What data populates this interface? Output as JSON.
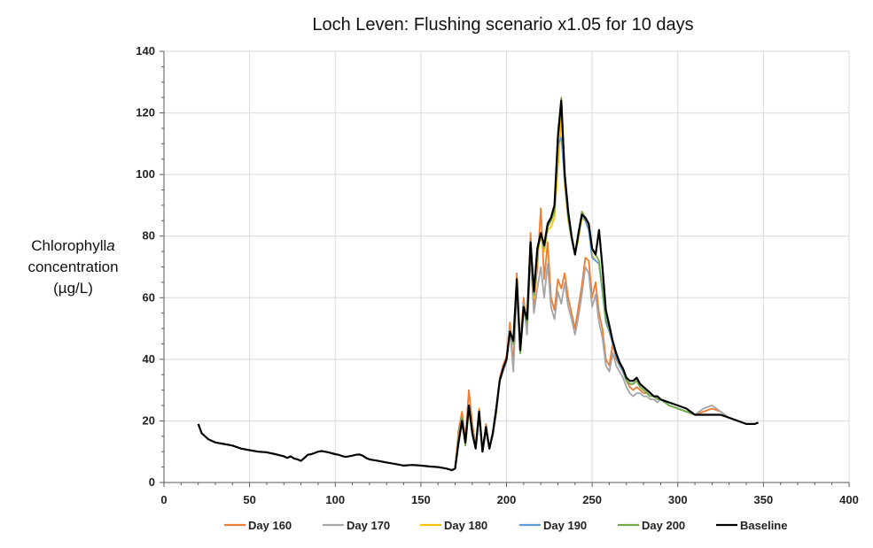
{
  "chart_data": {
    "type": "line",
    "title": "Loch Leven: Flushing scenario x1.05 for 10 days",
    "ylabel_lines": [
      "Chlorophyll",
      "concentration",
      "(µg/L)"
    ],
    "ylabel_italic_suffix": "a",
    "xlabel": "",
    "xlim": [
      0,
      400
    ],
    "ylim": [
      0,
      140
    ],
    "x_ticks": [
      0,
      50,
      100,
      150,
      200,
      250,
      300,
      350,
      400
    ],
    "y_ticks": [
      0,
      20,
      40,
      60,
      80,
      100,
      120,
      140
    ],
    "grid": true,
    "legend_position": "bottom",
    "series": [
      {
        "name": "Day 160",
        "color": "#ed7d31",
        "x": [
          170,
          172,
          174,
          176,
          178,
          180,
          182,
          184,
          186,
          188,
          190,
          192,
          194,
          196,
          198,
          200,
          202,
          204,
          206,
          208,
          210,
          212,
          214,
          216,
          218,
          220,
          222,
          224,
          226,
          228,
          230,
          232,
          234,
          236,
          238,
          240,
          242,
          244,
          246,
          248,
          250,
          252,
          254,
          256,
          258,
          260,
          262,
          264,
          266,
          268,
          270,
          272,
          274,
          276,
          278,
          280,
          282,
          284,
          286,
          288,
          290,
          295,
          300,
          305,
          310,
          315,
          320,
          325,
          330,
          335,
          340,
          345
        ],
        "y": [
          5,
          17,
          23,
          14,
          30,
          19,
          12,
          24,
          10,
          19,
          11,
          16,
          24,
          34,
          38,
          41,
          52,
          38,
          68,
          44,
          60,
          50,
          81,
          58,
          70,
          89,
          66,
          78,
          60,
          56,
          66,
          63,
          68,
          60,
          55,
          50,
          57,
          64,
          73,
          72,
          60,
          65,
          55,
          50,
          40,
          38,
          45,
          40,
          38,
          36,
          33,
          31,
          30,
          31,
          30,
          29,
          29,
          28,
          28,
          27,
          27,
          25,
          24,
          23,
          22,
          23,
          24,
          23,
          21,
          20,
          19,
          19
        ]
      },
      {
        "name": "Day 170",
        "color": "#a5a5a5",
        "x": [
          170,
          172,
          174,
          176,
          178,
          180,
          182,
          184,
          186,
          188,
          190,
          192,
          194,
          196,
          198,
          200,
          202,
          204,
          206,
          208,
          210,
          212,
          214,
          216,
          218,
          220,
          222,
          224,
          226,
          228,
          230,
          232,
          234,
          236,
          238,
          240,
          242,
          244,
          246,
          248,
          250,
          252,
          254,
          256,
          258,
          260,
          262,
          264,
          266,
          268,
          270,
          272,
          274,
          276,
          278,
          280,
          282,
          284,
          286,
          288,
          290,
          295,
          300,
          305,
          310,
          315,
          320,
          325,
          330,
          335,
          340,
          345
        ],
        "y": [
          5,
          15,
          21,
          13,
          25,
          17,
          12,
          22,
          10,
          17,
          11,
          15,
          22,
          33,
          36,
          39,
          50,
          36,
          62,
          42,
          58,
          48,
          73,
          55,
          63,
          70,
          60,
          71,
          57,
          53,
          62,
          58,
          65,
          57,
          53,
          48,
          54,
          61,
          70,
          68,
          57,
          61,
          52,
          47,
          38,
          36,
          42,
          38,
          36,
          34,
          31,
          29,
          28,
          29,
          29,
          28,
          28,
          27,
          27,
          26,
          27,
          25,
          24,
          23,
          22,
          24,
          25,
          23,
          21,
          20,
          19,
          19
        ]
      },
      {
        "name": "Day 180",
        "color": "#ffc000",
        "x": [
          170,
          172,
          174,
          176,
          178,
          180,
          182,
          184,
          186,
          188,
          190,
          192,
          194,
          196,
          198,
          200,
          202,
          204,
          206,
          208,
          210,
          212,
          214,
          216,
          218,
          220,
          222,
          224,
          226,
          228,
          230,
          232,
          234,
          236,
          238,
          240,
          242,
          244,
          246,
          248,
          250,
          252,
          254,
          256,
          258,
          260,
          262,
          264,
          266,
          268,
          270,
          272,
          274,
          276,
          278,
          280,
          282,
          284,
          286,
          288,
          290,
          295,
          300,
          305,
          310,
          315,
          320,
          325,
          330,
          335,
          340,
          345
        ],
        "y": [
          5,
          14,
          21,
          12,
          24,
          16,
          11,
          22,
          10,
          17,
          11,
          16,
          23,
          33,
          37,
          40,
          49,
          45,
          66,
          42,
          56,
          52,
          77,
          60,
          74,
          80,
          75,
          82,
          83,
          86,
          102,
          118,
          96,
          85,
          79,
          74,
          79,
          86,
          85,
          82,
          74,
          72,
          71,
          62,
          52,
          49,
          45,
          41,
          38,
          36,
          33,
          32,
          32,
          33,
          31,
          30,
          29,
          28,
          28,
          27,
          27,
          25,
          24,
          23,
          22,
          22,
          22,
          22,
          21,
          20,
          19,
          19
        ]
      },
      {
        "name": "Day 190",
        "color": "#5b9bd5",
        "x": [
          170,
          172,
          174,
          176,
          178,
          180,
          182,
          184,
          186,
          188,
          190,
          192,
          194,
          196,
          198,
          200,
          202,
          204,
          206,
          208,
          210,
          212,
          214,
          216,
          218,
          220,
          222,
          224,
          226,
          228,
          230,
          232,
          234,
          236,
          238,
          240,
          242,
          244,
          246,
          248,
          250,
          252,
          254,
          256,
          258,
          260,
          262,
          264,
          266,
          268,
          270,
          272,
          274,
          276,
          278,
          280,
          282,
          284,
          286,
          288,
          290,
          295,
          300,
          305,
          310,
          315,
          320,
          325,
          330,
          335,
          340,
          345
        ],
        "y": [
          5,
          14,
          21,
          12,
          24,
          16,
          11,
          22,
          10,
          17,
          11,
          16,
          23,
          33,
          37,
          40,
          49,
          45,
          66,
          42,
          56,
          52,
          78,
          61,
          75,
          81,
          76,
          83,
          85,
          88,
          110,
          112,
          98,
          86,
          79,
          74,
          80,
          87,
          85,
          82,
          73,
          72,
          71,
          62,
          52,
          49,
          45,
          41,
          38,
          36,
          33,
          32,
          32,
          33,
          31,
          30,
          29,
          28,
          28,
          27,
          27,
          25,
          24,
          23,
          22,
          22,
          22,
          22,
          21,
          20,
          19,
          19
        ]
      },
      {
        "name": "Day 200",
        "color": "#70ad47",
        "x": [
          170,
          172,
          174,
          176,
          178,
          180,
          182,
          184,
          186,
          188,
          190,
          192,
          194,
          196,
          198,
          200,
          202,
          204,
          206,
          208,
          210,
          212,
          214,
          216,
          218,
          220,
          222,
          224,
          226,
          228,
          230,
          232,
          234,
          236,
          238,
          240,
          242,
          244,
          246,
          248,
          250,
          252,
          254,
          256,
          258,
          260,
          262,
          264,
          266,
          268,
          270,
          272,
          274,
          276,
          278,
          280,
          282,
          284,
          286,
          288,
          290,
          295,
          300,
          305,
          310,
          315,
          320,
          325,
          330,
          335,
          340,
          345
        ],
        "y": [
          5,
          14,
          21,
          12,
          24,
          16,
          11,
          22,
          10,
          17,
          11,
          16,
          23,
          33,
          37,
          40,
          49,
          45,
          66,
          42,
          56,
          52,
          78,
          61,
          75,
          81,
          76,
          83,
          85,
          88,
          114,
          125,
          99,
          86,
          79,
          74,
          80,
          88,
          86,
          84,
          76,
          74,
          72,
          63,
          53,
          50,
          46,
          42,
          39,
          37,
          33,
          32,
          32,
          33,
          31,
          30,
          29,
          28,
          28,
          27,
          27,
          25,
          24,
          23,
          22,
          22,
          22,
          22,
          21,
          20,
          19,
          19
        ]
      },
      {
        "name": "Baseline",
        "color": "#000000",
        "x": [
          20,
          22,
          24,
          26,
          30,
          35,
          40,
          45,
          50,
          55,
          60,
          65,
          70,
          72,
          74,
          76,
          78,
          80,
          82,
          84,
          86,
          88,
          90,
          92,
          94,
          96,
          98,
          100,
          102,
          104,
          106,
          108,
          110,
          112,
          114,
          116,
          118,
          120,
          125,
          130,
          135,
          140,
          145,
          150,
          155,
          160,
          165,
          168,
          170,
          172,
          174,
          176,
          178,
          180,
          182,
          184,
          186,
          188,
          190,
          192,
          194,
          196,
          198,
          200,
          202,
          204,
          206,
          208,
          210,
          212,
          214,
          216,
          218,
          220,
          222,
          224,
          226,
          228,
          230,
          232,
          234,
          236,
          238,
          240,
          242,
          244,
          246,
          248,
          250,
          252,
          254,
          256,
          258,
          260,
          262,
          264,
          266,
          268,
          270,
          272,
          274,
          276,
          278,
          280,
          282,
          284,
          286,
          288,
          290,
          295,
          300,
          305,
          310,
          315,
          320,
          325,
          330,
          335,
          340,
          345,
          347
        ],
        "y": [
          19,
          16,
          15,
          14,
          13,
          12.5,
          12,
          11,
          10.5,
          10,
          9.8,
          9.2,
          8.5,
          8,
          8.5,
          7.8,
          7.5,
          7,
          8,
          9,
          9.2,
          9.6,
          10,
          10.2,
          10,
          9.8,
          9.5,
          9.2,
          9,
          8.6,
          8.3,
          8.5,
          8.7,
          9,
          9.1,
          8.7,
          8,
          7.5,
          7,
          6.5,
          6,
          5.5,
          5.7,
          5.5,
          5.2,
          5,
          4.5,
          4,
          4.5,
          13,
          20,
          13,
          25,
          16,
          11,
          23,
          10,
          18,
          11,
          16,
          24,
          33,
          37,
          40,
          49,
          46,
          66,
          43,
          57,
          53,
          78,
          62,
          76,
          81,
          77,
          84,
          86,
          90,
          112,
          124,
          100,
          88,
          80,
          74,
          81,
          87,
          86,
          84,
          76,
          74,
          82,
          70,
          56,
          51,
          46,
          42,
          39,
          37,
          34,
          33,
          33,
          34,
          32,
          31,
          30,
          29,
          28,
          28,
          27,
          26,
          25,
          24,
          22,
          22,
          22,
          22,
          21,
          20,
          19,
          19,
          19.5
        ]
      }
    ]
  }
}
